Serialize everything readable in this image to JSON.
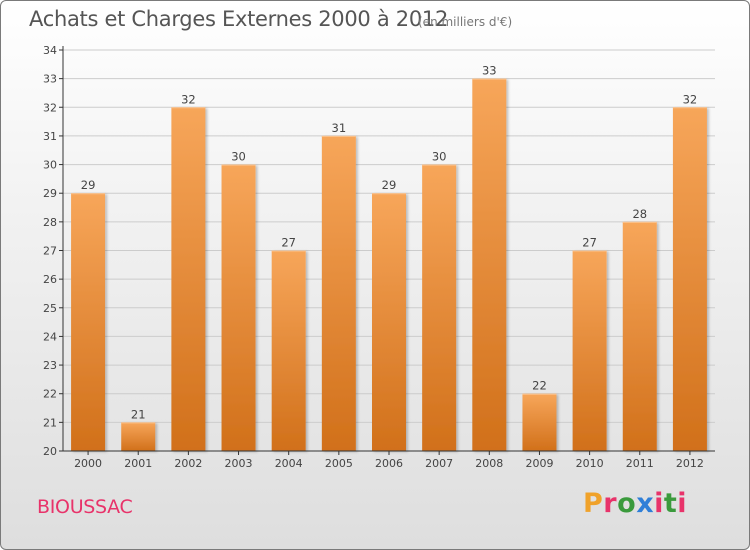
{
  "header": {
    "title": "Achats et Charges Externes 2000 à 2012",
    "subtitle": "(en milliers d'€)"
  },
  "footer": {
    "commune": "BIOUSSAC",
    "brand": "Proxiti",
    "brand_colors": [
      "#f0a22a",
      "#e8336a",
      "#3a9a3c",
      "#2f7fd8",
      "#e8336a",
      "#3a9a3c",
      "#e8336a"
    ]
  },
  "colors": {
    "bar_top": "#f7a65a",
    "bar_bottom": "#d1701a",
    "grid": "#cccccc",
    "axis": "#333333",
    "commune_text": "#e8336a"
  },
  "chart_data": {
    "type": "bar",
    "categories": [
      "2000",
      "2001",
      "2002",
      "2003",
      "2004",
      "2005",
      "2006",
      "2007",
      "2008",
      "2009",
      "2010",
      "2011",
      "2012"
    ],
    "values": [
      29,
      21,
      32,
      30,
      27,
      31,
      29,
      30,
      33,
      22,
      27,
      28,
      32
    ],
    "title": "Achats et Charges Externes 2000 à 2012",
    "subtitle": "(en milliers d'€)",
    "xlabel": "",
    "ylabel": "",
    "ylim": [
      20,
      34
    ],
    "yticks": [
      20,
      21,
      22,
      23,
      24,
      25,
      26,
      27,
      28,
      29,
      30,
      31,
      32,
      33,
      34
    ],
    "grid": true,
    "data_labels": true
  }
}
